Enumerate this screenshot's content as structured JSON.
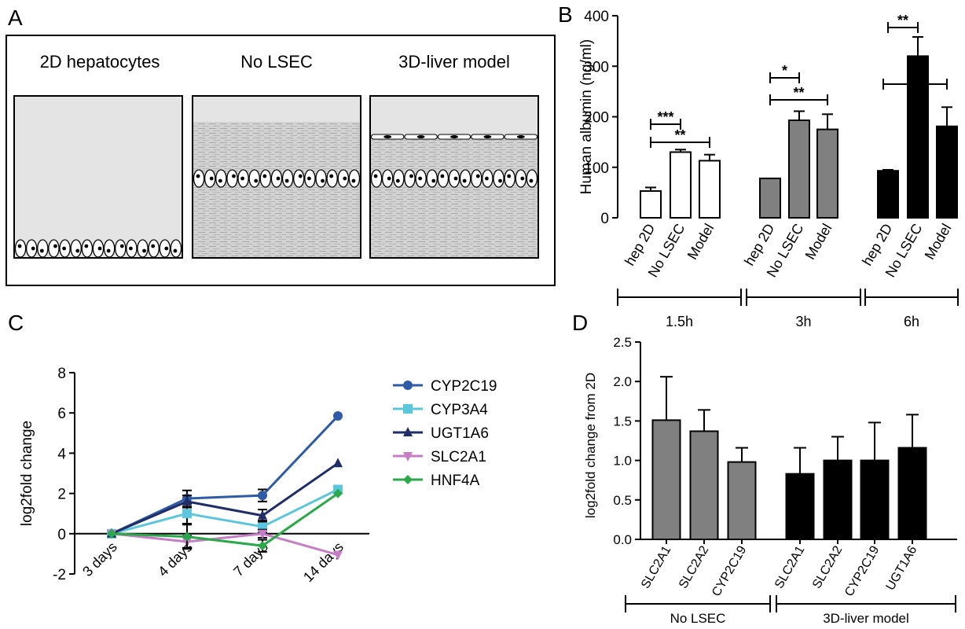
{
  "panels": {
    "a": "A",
    "b": "B",
    "c": "C",
    "d": "D"
  },
  "schematic": {
    "labels": [
      "2D hepatocytes",
      "No LSEC",
      "3D-liver model"
    ],
    "colors": {
      "medium": "#e4e4e4",
      "matrix": "#c9c9c9",
      "outline": "#000000"
    }
  },
  "chart_data": [
    {
      "panel": "B",
      "type": "bar",
      "ylabel": "Human albumin (ng/ml)",
      "ylim": [
        0,
        400
      ],
      "yticks": [
        0,
        100,
        200,
        300,
        400
      ],
      "categories": [
        "hep 2D",
        "No LSEC",
        "Model",
        "hep 2D",
        "No LSEC",
        "Model",
        "hep 2D",
        "No LSEC",
        "Model"
      ],
      "groups": [
        {
          "label": "1.5h",
          "fill": "#ffffff",
          "values": [
            53,
            130,
            113
          ],
          "errors": [
            7,
            5,
            12
          ]
        },
        {
          "label": "3h",
          "fill": "#808080",
          "values": [
            78,
            193,
            175
          ],
          "errors": [
            0,
            18,
            30
          ]
        },
        {
          "label": "6h",
          "fill": "#000000",
          "values": [
            93,
            320,
            181
          ],
          "errors": [
            2,
            38,
            38
          ]
        }
      ],
      "significance": [
        {
          "group": 0,
          "from": 0,
          "to": 1,
          "label": "***"
        },
        {
          "group": 0,
          "from": 0,
          "to": 2,
          "label": "**"
        },
        {
          "group": 1,
          "from": 0,
          "to": 1,
          "label": "*"
        },
        {
          "group": 1,
          "from": 0,
          "to": 2,
          "label": "**"
        },
        {
          "group": 2,
          "from": 0,
          "to": 1,
          "label": "**"
        },
        {
          "group": 2,
          "from": 1,
          "to": 2,
          "label": "**"
        }
      ]
    },
    {
      "panel": "C",
      "type": "line",
      "ylabel": "log2fold change",
      "ylim": [
        -2,
        8
      ],
      "yticks": [
        -2,
        0,
        2,
        4,
        6,
        8
      ],
      "categories": [
        "3 days",
        "4 days",
        "7 days",
        "14 days"
      ],
      "legend": "right",
      "series": [
        {
          "name": "CYP2C19",
          "color": "#2f5aa6",
          "marker": "circle",
          "values": [
            0,
            1.75,
            1.9,
            5.85
          ],
          "errors": [
            0,
            0.4,
            0.3,
            0
          ]
        },
        {
          "name": "CYP3A4",
          "color": "#5cc6dc",
          "marker": "square",
          "values": [
            0,
            1.0,
            0.35,
            2.2
          ],
          "errors": [
            0,
            0.5,
            0.3,
            0
          ]
        },
        {
          "name": "UGT1A6",
          "color": "#1f2e66",
          "marker": "triangle-up",
          "values": [
            0,
            1.6,
            0.9,
            3.5
          ],
          "errors": [
            0,
            0.3,
            0.3,
            0
          ]
        },
        {
          "name": "SLC2A1",
          "color": "#c47fc4",
          "marker": "triangle-down",
          "values": [
            0,
            -0.4,
            0.0,
            -1.05
          ],
          "errors": [
            0,
            0.3,
            0.2,
            0
          ]
        },
        {
          "name": "HNF4A",
          "color": "#2aa84a",
          "marker": "diamond",
          "values": [
            0,
            -0.15,
            -0.6,
            2.0
          ],
          "errors": [
            0,
            0.6,
            0.3,
            0
          ]
        }
      ]
    },
    {
      "panel": "D",
      "type": "bar",
      "ylabel": "log2fold change from 2D",
      "ylim": [
        0,
        2.5
      ],
      "yticks": [
        "0.0",
        "0.5",
        "1.0",
        "1.5",
        "2.0",
        "2.5"
      ],
      "groups": [
        {
          "label": "No LSEC",
          "fill": "#808080",
          "categories": [
            "SLC2A1",
            "SLC2A2",
            "CYP2C19"
          ],
          "values": [
            1.51,
            1.37,
            0.98
          ],
          "errors": [
            0.55,
            0.27,
            0.18
          ]
        },
        {
          "label": "3D-liver model",
          "fill": "#000000",
          "categories": [
            "SLC2A1",
            "SLC2A2",
            "CYP2C19",
            "UGT1A6"
          ],
          "values": [
            0.83,
            1.0,
            1.0,
            1.16
          ],
          "errors": [
            0.33,
            0.3,
            0.48,
            0.42
          ]
        }
      ]
    }
  ]
}
